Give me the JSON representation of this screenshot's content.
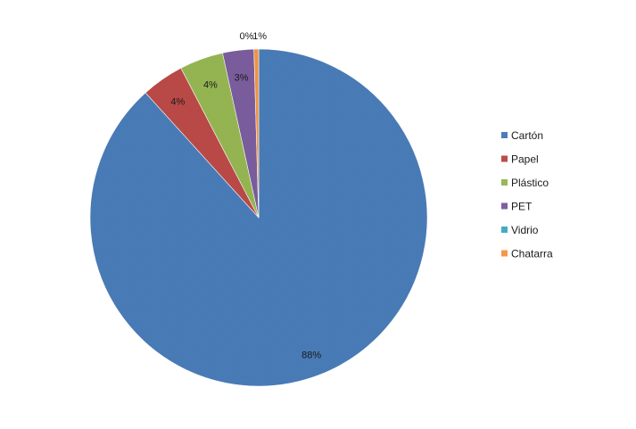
{
  "chart_data": {
    "type": "pie",
    "categories": [
      "Cartón",
      "Papel",
      "Plástico",
      "PET",
      "Vidrio",
      "Chatarra"
    ],
    "values": [
      88,
      4,
      4,
      3,
      0,
      1
    ],
    "labels": [
      "88%",
      "4%",
      "4%",
      "3%",
      "0%",
      "1%"
    ],
    "colors": [
      "#4a7ebb",
      "#be4b48",
      "#98b954",
      "#7d5fa0",
      "#46aac5",
      "#f79646"
    ],
    "legend_position": "right"
  }
}
